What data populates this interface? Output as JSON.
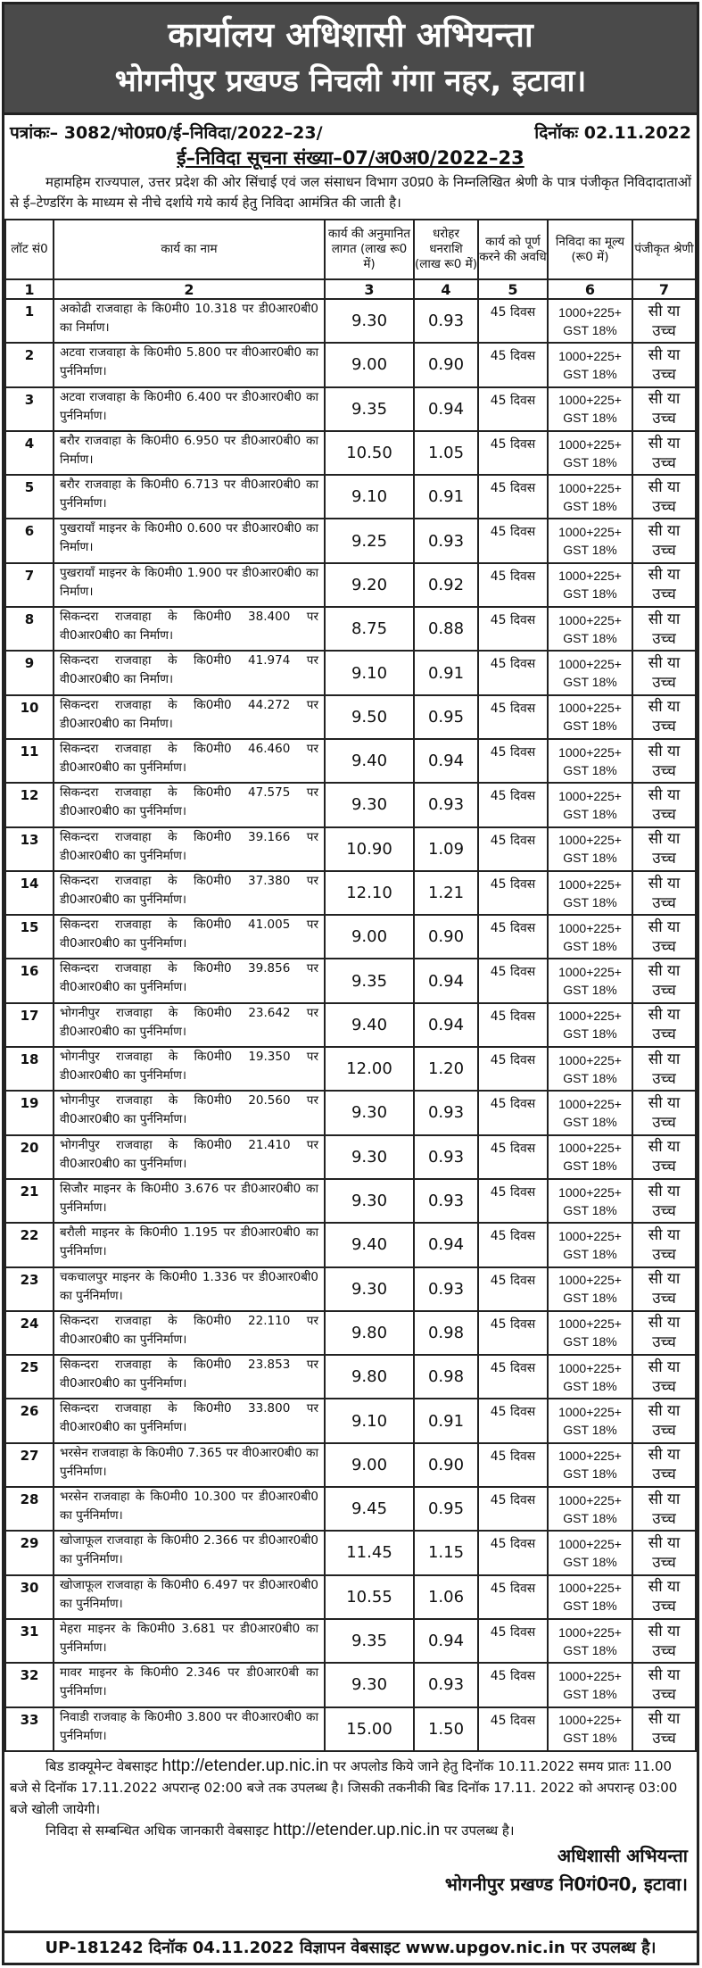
{
  "header": {
    "line1": "कार्यालय अधिशासी अभियन्ता",
    "line2": "भोगनीपुर प्रखण्ड निचली गंगा नहर, इटावा।"
  },
  "reference": {
    "letter_no": "पत्रांकः– 3082/भो0प्र0/ई–निविदा/2022–23/",
    "date": "दिनॉकः 02.11.2022"
  },
  "notice_title": "ई–निविदा सूचना संख्या–07/अ0अ0/2022–23",
  "intro": "महामहिम राज्यपाल, उत्तर प्रदेश की ओर सिंचाई एवं जल संसाधन विभाग उ0प्र0 के निम्नलिखित श्रेणी के पात्र पंजीकृत निविदादाताओं से ई–टेण्डरिंग के माध्यम से नीचे दर्शाये गये कार्य हेतु निविदा आमंत्रित की जाती है।",
  "table": {
    "headers": [
      "लॉट सं0",
      "कार्य का नाम",
      "कार्य की अनुमानित लागत (लाख रू0 में)",
      "धरोहर धनराशि (लाख रू0 में)",
      "कार्य को पूर्ण करने की अवधि",
      "निविदा का मूल्य (रू0 में)",
      "पंजीकृत श्रेणी"
    ],
    "column_numbers": [
      "1",
      "2",
      "3",
      "4",
      "5",
      "6",
      "7"
    ],
    "rows": [
      [
        "1",
        "अकोढी राजवाहा के कि0मी0 10.318 पर डी0आर0बी0 का निर्माण।",
        "9.30",
        "0.93"
      ],
      [
        "2",
        "अटवा राजवाहा के कि0मी0 5.800 पर वी0आर0बी0 का पुर्ननिर्माण।",
        "9.00",
        "0.90"
      ],
      [
        "3",
        "अटवा राजवाहा के कि0मी0 6.400 पर डी0आर0बी0 का पुर्ननिर्माण।",
        "9.35",
        "0.94"
      ],
      [
        "4",
        "बरौर राजवाहा के कि0मी0 6.950 पर डी0आर0बी0 का निर्माण।",
        "10.50",
        "1.05"
      ],
      [
        "5",
        "बरौर राजवाहा के कि0मी0 6.713 पर वी0आर0बी0 का पुर्ननिर्माण।",
        "9.10",
        "0.91"
      ],
      [
        "6",
        "पुखरायाँ माइनर के कि0मी0 0.600 पर डी0आर0बी0 का निर्माण।",
        "9.25",
        "0.93"
      ],
      [
        "7",
        "पुखरायाँ माइनर के कि0मी0 1.900 पर डी0आर0बी0 का निर्माण।",
        "9.20",
        "0.92"
      ],
      [
        "8",
        "सिकन्दरा राजवाहा के कि0मी0 38.400 पर वी0आर0बी0 का निर्माण।",
        "8.75",
        "0.88"
      ],
      [
        "9",
        "सिकन्दरा राजवाहा के कि0मी0 41.974 पर वी0आर0बी0 का निर्माण।",
        "9.10",
        "0.91"
      ],
      [
        "10",
        "सिकन्दरा राजवाहा के कि0मी0 44.272 पर डी0आर0बी0 का निर्माण।",
        "9.50",
        "0.95"
      ],
      [
        "11",
        "सिकन्दरा राजवाहा के कि0मी0 46.460 पर डी0आर0बी0 का पुर्ननिर्माण।",
        "9.40",
        "0.94"
      ],
      [
        "12",
        "सिकन्दरा राजवाहा के कि0मी0 47.575 पर डी0आर0बी0 का पुर्ननिर्माण।",
        "9.30",
        "0.93"
      ],
      [
        "13",
        "सिकन्दरा राजवाहा के कि0मी0 39.166 पर डी0आर0बी0 का पुर्ननिर्माण।",
        "10.90",
        "1.09"
      ],
      [
        "14",
        "सिकन्दरा राजवाहा के कि0मी0 37.380 पर डी0आर0बी0 का पुर्ननिर्माण।",
        "12.10",
        "1.21"
      ],
      [
        "15",
        "सिकन्दरा राजवाहा के कि0मी0 41.005 पर वी0आर0बी0 का पुर्ननिर्माण।",
        "9.00",
        "0.90"
      ],
      [
        "16",
        "सिकन्दरा राजवाहा के कि0मी0 39.856 पर वी0आर0बी0 का पुर्ननिर्माण।",
        "9.35",
        "0.94"
      ],
      [
        "17",
        "भोगनीपुर राजवाहा के कि0मी0 23.642 पर डी0आर0बी0 का पुर्ननिर्माण।",
        "9.40",
        "0.94"
      ],
      [
        "18",
        "भोगनीपुर राजवाहा के कि0मी0 19.350 पर डी0आर0बी0 का पुर्ननिर्माण।",
        "12.00",
        "1.20"
      ],
      [
        "19",
        "भोगनीपुर राजवाहा के कि0मी0 20.560 पर वी0आर0बी0 का पुर्ननिर्माण।",
        "9.30",
        "0.93"
      ],
      [
        "20",
        "भोगनीपुर राजवाहा के कि0मी0 21.410 पर वी0आर0बी0 का पुर्ननिर्माण।",
        "9.30",
        "0.93"
      ],
      [
        "21",
        "सिजौर माइनर के कि0मी0 3.676 पर डी0आर0बी0 का पुर्ननिर्माण।",
        "9.30",
        "0.93"
      ],
      [
        "22",
        "बरौली माइनर के कि0मी0 1.195 पर डी0आर0बी0 का पुर्ननिर्माण।",
        "9.40",
        "0.94"
      ],
      [
        "23",
        "चकचालपुर माइनर के कि0मी0 1.336 पर डी0आर0बी0 का पुर्ननिर्माण।",
        "9.30",
        "0.93"
      ],
      [
        "24",
        "सिकन्दरा राजवाहा के कि0मी0 22.110 पर वी0आर0बी0 का पुर्ननिर्माण।",
        "9.80",
        "0.98"
      ],
      [
        "25",
        "सिकन्दरा राजवाहा के कि0मी0 23.853 पर वी0आर0बी0 का पुर्ननिर्माण।",
        "9.80",
        "0.98"
      ],
      [
        "26",
        "सिकन्दरा राजवाहा के कि0मी0 33.800 पर वी0आर0बी0 का पुर्ननिर्माण।",
        "9.10",
        "0.91"
      ],
      [
        "27",
        "भरसेन राजवाहा के कि0मी0 7.365 पर वी0आर0बी0 का पुर्ननिर्माण।",
        "9.00",
        "0.90"
      ],
      [
        "28",
        "भरसेन राजवाहा के कि0मी0 10.300 पर डी0आर0बी0 का पुर्ननिर्माण।",
        "9.45",
        "0.95"
      ],
      [
        "29",
        "खोजाफूल राजवाहा के कि0मी0 2.366 पर डी0आर0बी0 का पुर्ननिर्माण।",
        "11.45",
        "1.15"
      ],
      [
        "30",
        "खोजाफूल राजवाहा के कि0मी0 6.497 पर डी0आर0बी0 का पुर्ननिर्माण।",
        "10.55",
        "1.06"
      ],
      [
        "31",
        "मेहरा माइनर के कि0मी0 3.681 पर डी0आर0बी0 का पुर्ननिर्माण।",
        "9.35",
        "0.94"
      ],
      [
        "32",
        "मावर माइनर के कि0मी0 2.346 पर डी0आर0बी का पुर्ननिर्माण।",
        "9.30",
        "0.93"
      ],
      [
        "33",
        "निवाडी राजवाह के कि0मी0 3.800 पर वी0आर0बी0 का पुर्ननिर्माण।",
        "15.00",
        "1.50"
      ]
    ],
    "common": {
      "period": "45 दिवस",
      "fee_line1": "1000+225+",
      "fee_line2": "GST 18%",
      "class_line1": "सी या",
      "class_line2": "उच्च"
    }
  },
  "footer": {
    "p1_a": "बिड डाक्यूमेन्ट वेबसाइट ",
    "p1_url": "http://etender.up.nic.in",
    "p1_b": " पर अपलोड किये जाने हेतु दिनॉक 10.11.2022 समय प्रातः 11.00 बजे से दिनॉक 17.11.2022 अपरान्ह 02:00 बजे तक उपलब्ध है। जिसकी तकनीकी बिड दिनॉक 17.11. 2022 को अपरान्ह 03:00 बजे खोली जायेगी।",
    "p2_a": "निविदा से सम्बन्धित अधिक जानकारी वेबसाइट ",
    "p2_url": "http://etender.up.nic.in",
    "p2_b": " पर उपलब्ध है।",
    "sign1": "अधिशासी अभियन्ता",
    "sign2": "भोगनीपुर प्रखण्ड नि0गं0न0, इटावा।",
    "bottom": "UP-181242 दिनॉक 04.11.2022 विज्ञापन वेबसाइट www.upgov.nic.in पर उपलब्ध है।"
  }
}
